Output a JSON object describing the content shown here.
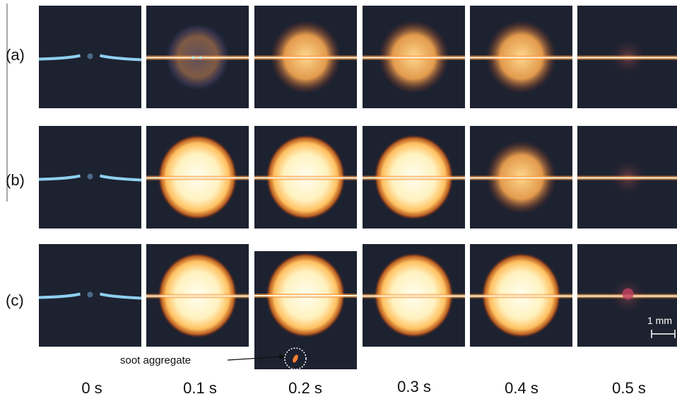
{
  "figure": {
    "rows": [
      "(a)",
      "(b)",
      "(c)"
    ],
    "times": [
      "0 s",
      "0.1 s",
      "0.2 s",
      "0.3 s",
      "0.4 s",
      "0.5 s"
    ],
    "annotation": "soot aggregate",
    "scale_bar": "1 mm"
  }
}
